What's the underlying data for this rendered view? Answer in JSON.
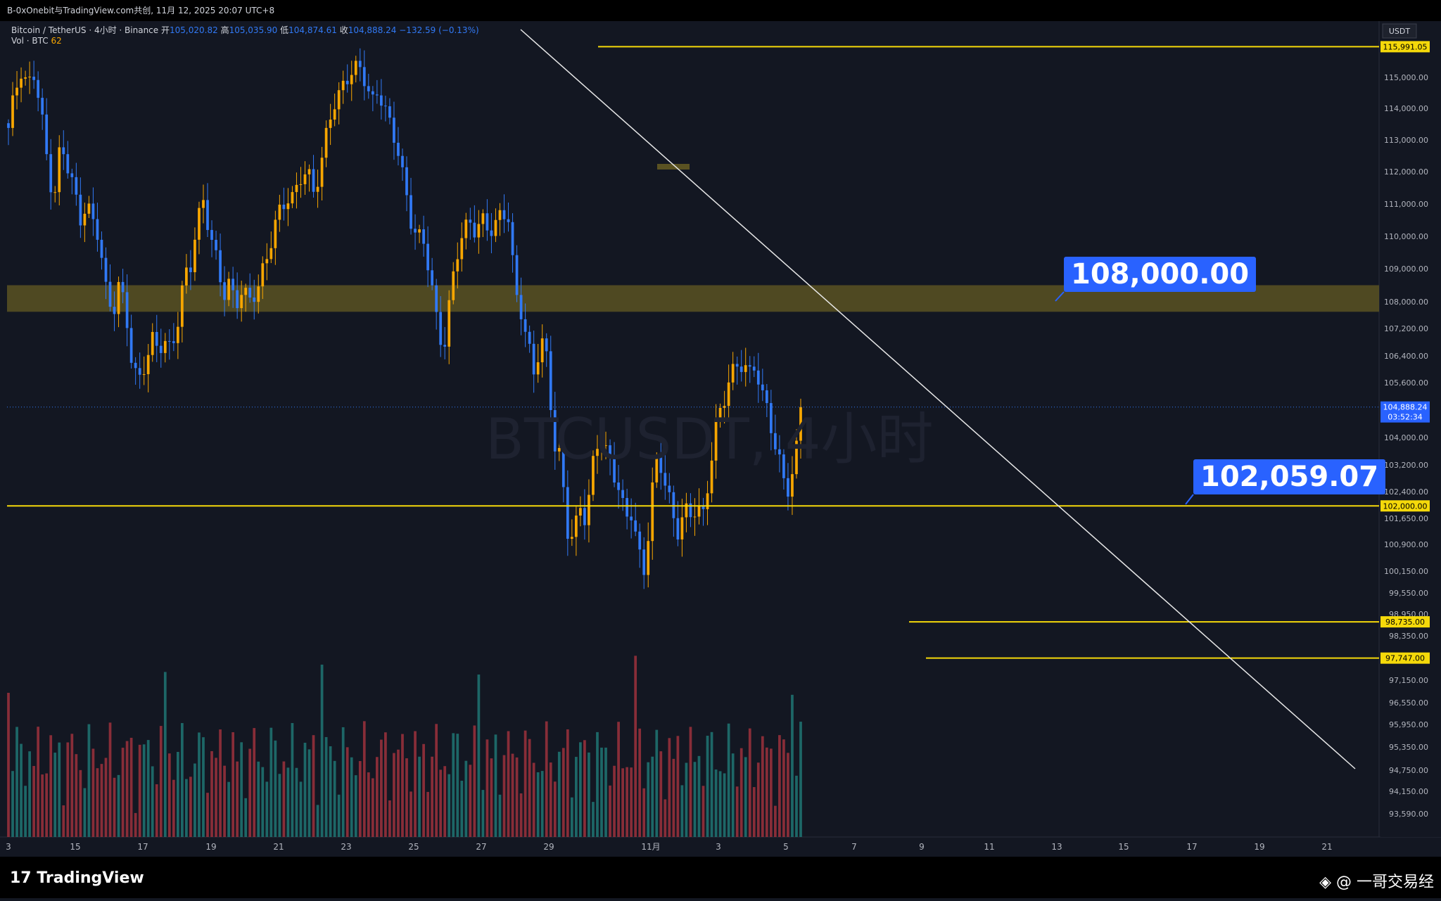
{
  "header": {
    "title": "B-0xOnebit与TradingView.com共创, 11月 12, 2025 20:07 UTC+8"
  },
  "legend": {
    "symbol": "Bitcoin / TetherUS · 4小时 · Binance",
    "open_label": "开",
    "open": "105,020.82",
    "high_label": "高",
    "high": "105,035.90",
    "low_label": "低",
    "low": "104,874.61",
    "close_label": "收",
    "close": "104,888.24",
    "change": "−132.59 (−0.13%)",
    "vol_label": "Vol · BTC",
    "vol_value": "62"
  },
  "footer": {
    "logo": "TradingView",
    "source": "◈ @ 一哥交易经"
  },
  "watermark": "BTCUSDT, 4小时",
  "callouts": {
    "resistance": "108,000.00",
    "support": "102,059.07"
  },
  "chart_data": {
    "type": "candlestick",
    "currency": "USDT",
    "y_ticks": [
      "93,590.00",
      "94,150.00",
      "94,750.00",
      "95,350.00",
      "95,950.00",
      "96,550.00",
      "97,150.00",
      "98,350.00",
      "98,950.00",
      "99,550.00",
      "100,150.00",
      "100,900.00",
      "101,650.00",
      "102,400.00",
      "103,200.00",
      "104,000.00",
      "105,600.00",
      "106,400.00",
      "107,200.00",
      "108,000.00",
      "109,000.00",
      "110,000.00",
      "111,000.00",
      "112,000.00",
      "113,000.00",
      "114,000.00",
      "115,000.00"
    ],
    "x_ticks": [
      "3",
      "15",
      "17",
      "19",
      "21",
      "23",
      "25",
      "27",
      "29",
      "11月",
      "3",
      "5",
      "7",
      "9",
      "11",
      "13",
      "15",
      "17",
      "19",
      "21"
    ],
    "price_labels": {
      "top_level": "115,991.05",
      "current_price": "104,888.24",
      "countdown": "03:52:34",
      "support": "102,000.00",
      "level_1": "98,735.00",
      "level_2": "97,747.00"
    },
    "horizontal_levels": [
      115991.05,
      102000.0,
      98735.0,
      97747.0
    ],
    "zone": [
      107700,
      108500
    ],
    "trendline": {
      "from": [
        "Oct 27",
        116300
      ],
      "to": [
        "Nov 21",
        94750
      ]
    },
    "colors": {
      "up": "#f7a600",
      "down": "#3179f5",
      "vol_up": "#1d6b6b",
      "vol_down": "#8e2e3a",
      "level": "#f5d90a",
      "zone": "#5a5222",
      "callout": "#2962ff"
    },
    "candles": [
      [
        1,
        1,
        0
      ],
      [
        2,
        2,
        0
      ],
      [
        3,
        3,
        1
      ],
      [
        4,
        4,
        1
      ],
      [
        5,
        5,
        1
      ],
      [
        6,
        6,
        1
      ],
      [
        6,
        7,
        1
      ],
      [
        7,
        8,
        0
      ],
      [
        8,
        9,
        1
      ],
      [
        9,
        10,
        1
      ],
      [
        10,
        11,
        0
      ],
      [
        11,
        12,
        1
      ],
      [
        12,
        13,
        1
      ],
      [
        13,
        14,
        0
      ],
      [
        14,
        15,
        1
      ],
      [
        15,
        16,
        1
      ],
      [
        16,
        17,
        0
      ],
      [
        17,
        18,
        1
      ]
    ]
  }
}
